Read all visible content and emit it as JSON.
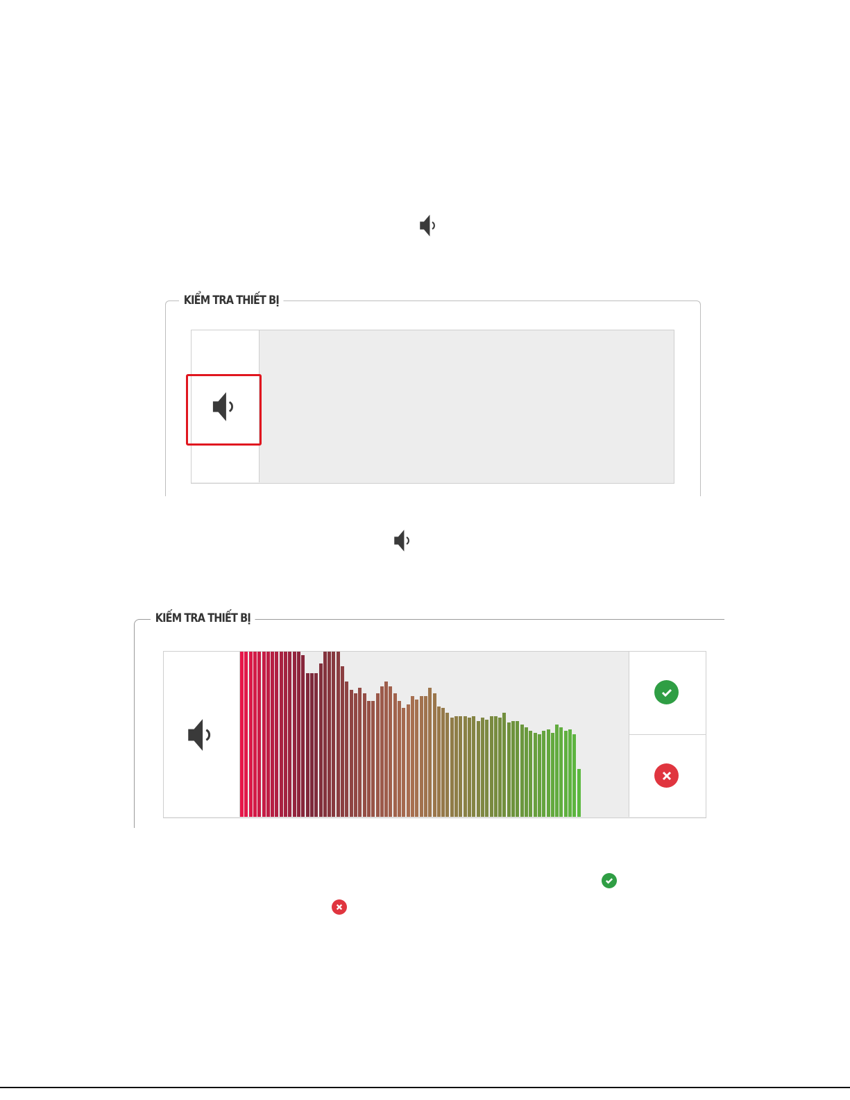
{
  "device_check_title_1": "KIỂM TRA THIẾT BỊ",
  "device_check_title_2": "KIẾM TRA THIẾT BỊ",
  "icons": {
    "speaker": "speaker-icon",
    "confirm": "check-circle-icon",
    "reject": "x-circle-icon"
  },
  "colors": {
    "highlight": "#e0161f",
    "confirm": "#2f9e44",
    "reject": "#e0353f",
    "meter_start": "#e8174a",
    "meter_end": "#5cb840"
  },
  "sound_meter": {
    "levels_percent": [
      100,
      100,
      100,
      100,
      100,
      100,
      100,
      100,
      100,
      100,
      100,
      100,
      100,
      100,
      98,
      87,
      87,
      87,
      93,
      100,
      100,
      100,
      100,
      91,
      82,
      77,
      75,
      78,
      75,
      70,
      70,
      75,
      79,
      82,
      79,
      75,
      70,
      66,
      68,
      73,
      71,
      73,
      73,
      78,
      75,
      67,
      66,
      63,
      60,
      61,
      61,
      61,
      60,
      61,
      58,
      60,
      59,
      61,
      61,
      60,
      63,
      57,
      58,
      58,
      56,
      54,
      52,
      51,
      50,
      52,
      53,
      51,
      56,
      54,
      52,
      53,
      50,
      29
    ]
  }
}
